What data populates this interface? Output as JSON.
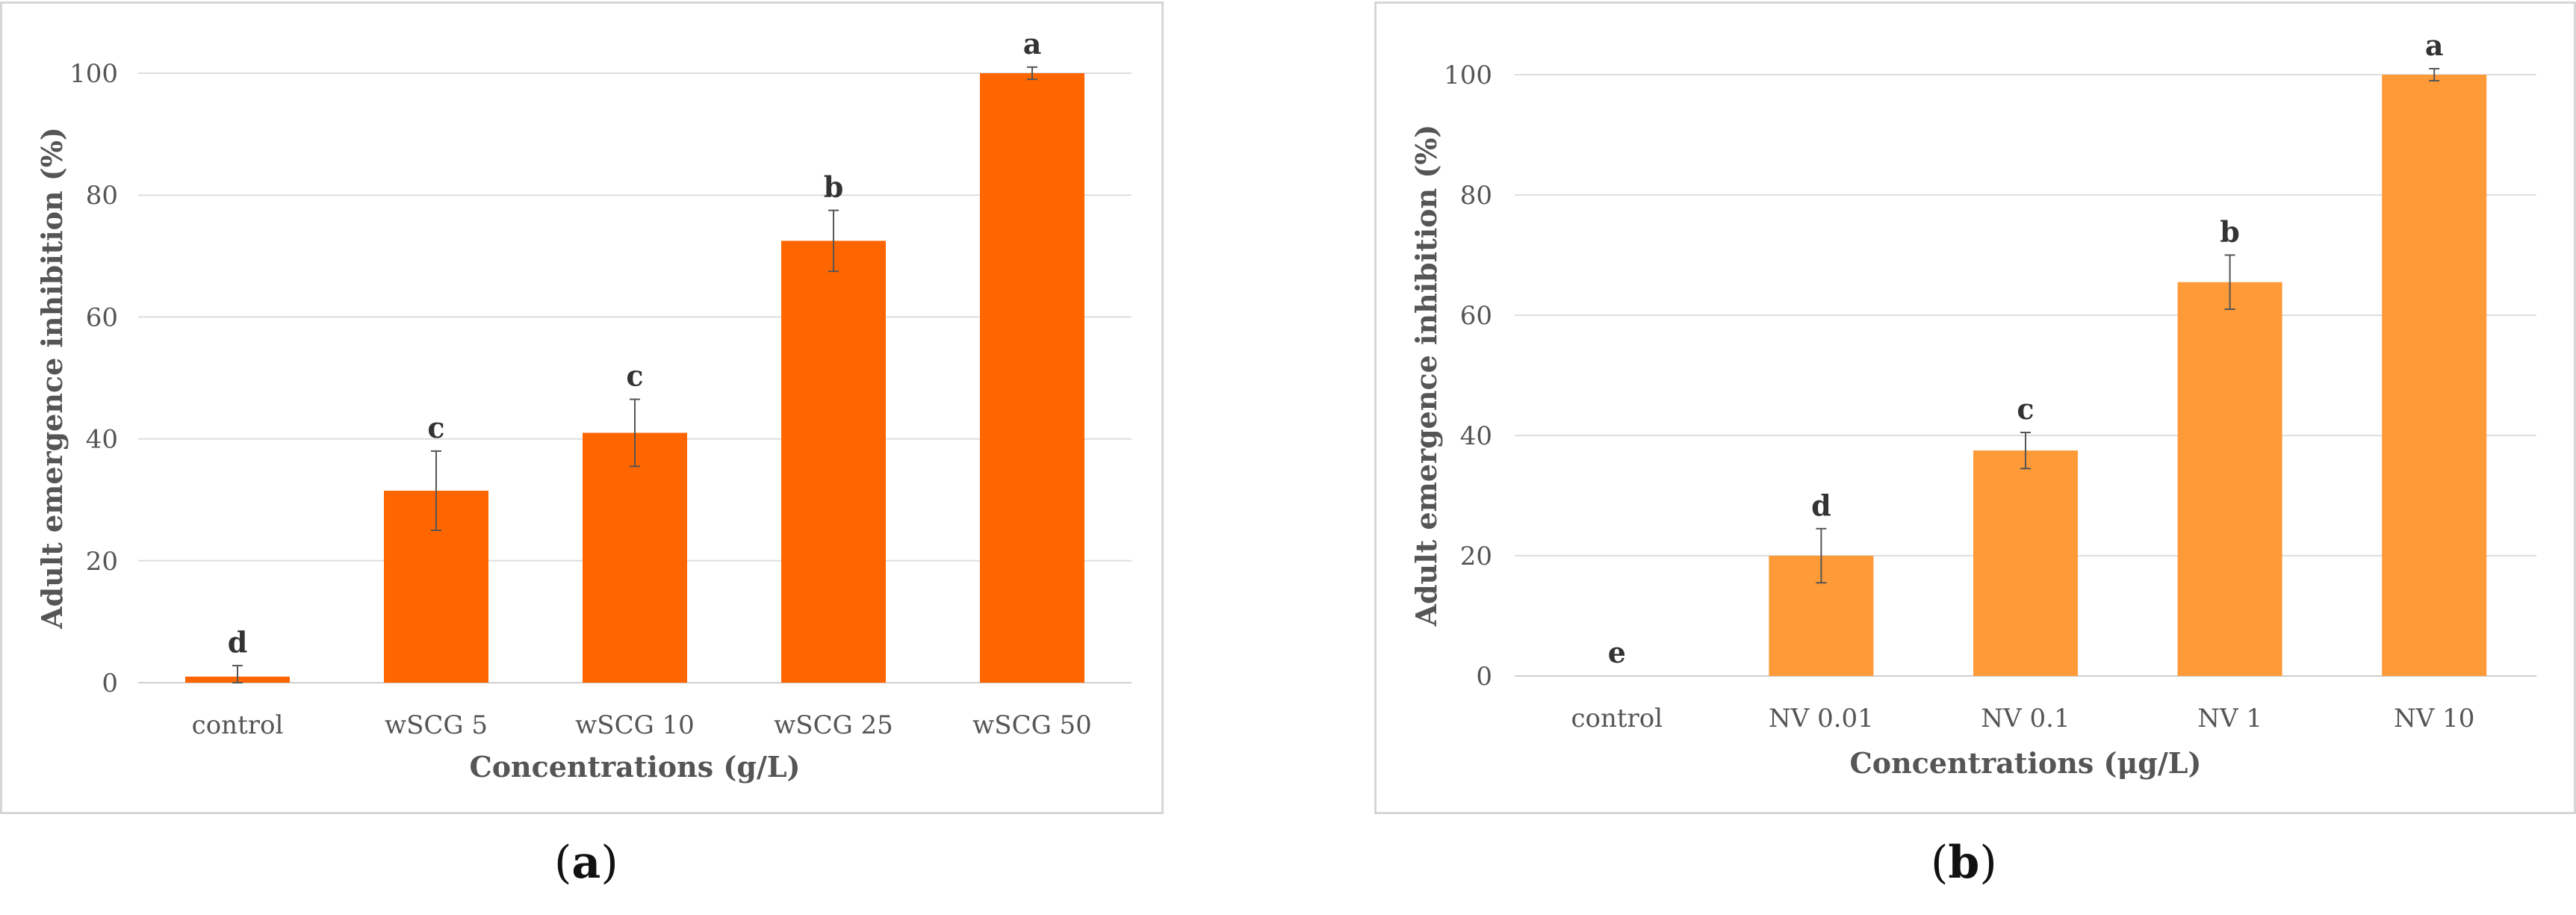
{
  "panels": [
    {
      "caption": "a",
      "color": "#ff6600",
      "chart_data": {
        "type": "bar",
        "categories": [
          "control",
          "wSCG 5",
          "wSCG 10",
          "wSCG 25",
          "wSCG 50"
        ],
        "values": [
          1,
          31.5,
          41,
          72.5,
          100
        ],
        "errors": [
          1.8,
          6.5,
          5.5,
          5,
          1
        ],
        "significance": [
          "d",
          "c",
          "c",
          "b",
          "a"
        ],
        "xlabel": "Concentrations (g/L)",
        "ylabel": "Adult emergence inhibition (%)",
        "ylim": [
          0,
          100
        ],
        "yticks": [
          0,
          20,
          40,
          60,
          80,
          100
        ],
        "grid": true
      }
    },
    {
      "caption": "b",
      "color": "#fe9a38",
      "chart_data": {
        "type": "bar",
        "categories": [
          "control",
          "NV 0.01",
          "NV 0.1",
          "NV 1",
          "NV 10"
        ],
        "values": [
          0,
          20,
          37.5,
          65.5,
          100
        ],
        "errors": [
          0,
          4.5,
          3,
          4.5,
          1
        ],
        "significance": [
          "e",
          "d",
          "c",
          "b",
          "a"
        ],
        "xlabel": "Concentrations (μg/L)",
        "ylabel": "Adult emergence inhibition (%)",
        "ylim": [
          0,
          100
        ],
        "yticks": [
          0,
          20,
          40,
          60,
          80,
          100
        ],
        "grid": true
      }
    }
  ]
}
